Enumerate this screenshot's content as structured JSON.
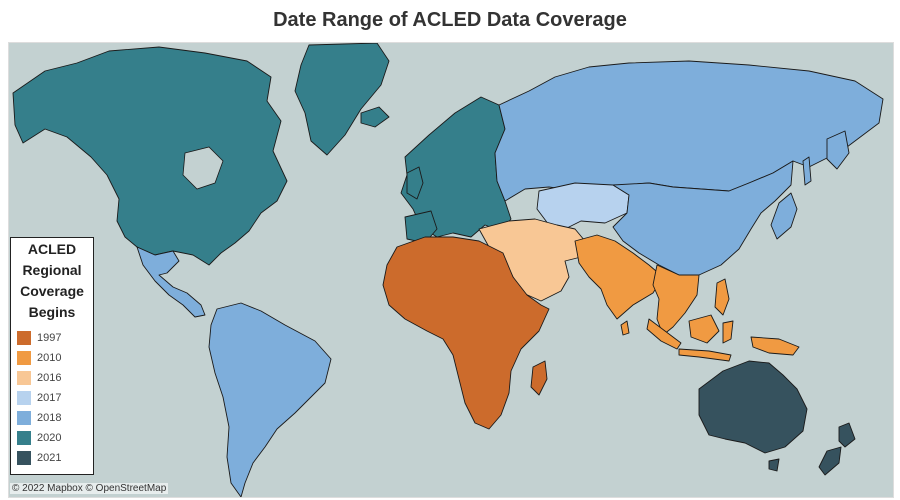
{
  "title": "Date Range of ACLED Data Coverage",
  "legend": {
    "title_lines": [
      "ACLED",
      "Regional",
      "Coverage",
      "Begins"
    ],
    "items": [
      {
        "label": "1997",
        "color": "#cc6b2c"
      },
      {
        "label": "2010",
        "color": "#f09a42"
      },
      {
        "label": "2016",
        "color": "#f8c795"
      },
      {
        "label": "2017",
        "color": "#b7d2ee"
      },
      {
        "label": "2018",
        "color": "#7eaedb"
      },
      {
        "label": "2020",
        "color": "#357f8b"
      },
      {
        "label": "2021",
        "color": "#36525e"
      }
    ]
  },
  "regions": [
    {
      "name": "North America",
      "year": "2020"
    },
    {
      "name": "Greenland",
      "year": "2020"
    },
    {
      "name": "Europe",
      "year": "2020"
    },
    {
      "name": "Central America",
      "year": "2018"
    },
    {
      "name": "South America",
      "year": "2018"
    },
    {
      "name": "Russia",
      "year": "2018"
    },
    {
      "name": "East Asia",
      "year": "2018"
    },
    {
      "name": "Central Asia",
      "year": "2017"
    },
    {
      "name": "Middle East",
      "year": "2016"
    },
    {
      "name": "Africa",
      "year": "1997"
    },
    {
      "name": "South Asia",
      "year": "2010"
    },
    {
      "name": "Southeast Asia",
      "year": "2010"
    },
    {
      "name": "Oceania",
      "year": "2021"
    }
  ],
  "attribution": "© 2022 Mapbox © OpenStreetMap",
  "ocean_color": "#c3d1d1"
}
